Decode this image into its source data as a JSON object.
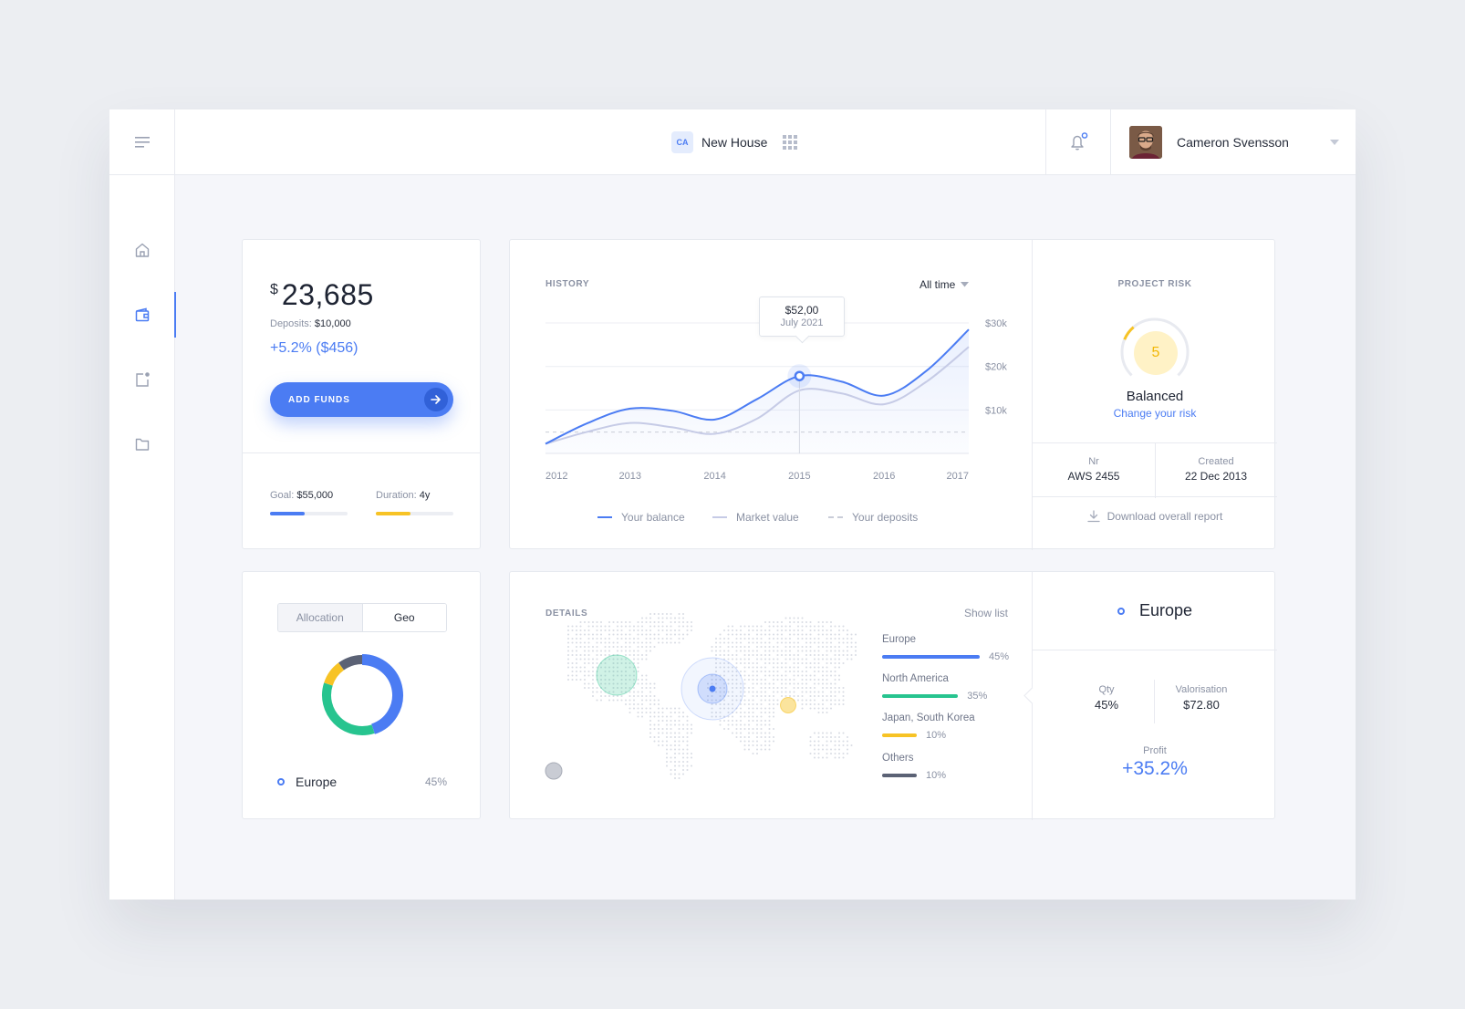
{
  "topbar": {
    "project_badge": "CA",
    "project_name": "New House",
    "user_name": "Cameron Svensson"
  },
  "sidebar": {
    "items": [
      {
        "name": "home",
        "icon": "home-icon",
        "active": false
      },
      {
        "name": "wallet",
        "icon": "wallet-icon",
        "active": true
      },
      {
        "name": "notifications",
        "icon": "notification-icon",
        "active": false
      },
      {
        "name": "files",
        "icon": "folder-icon",
        "active": false
      }
    ]
  },
  "balance": {
    "currency": "$",
    "amount": "23,685",
    "deposits_label": "Deposits:",
    "deposits_value": "$10,000",
    "change": "+5.2% ($456)",
    "add_funds_label": "ADD FUNDS",
    "goal_label": "Goal:",
    "goal_value": "$55,000",
    "goal_progress": 0.45,
    "duration_label": "Duration:",
    "duration_value": "4y",
    "duration_progress": 0.45
  },
  "history": {
    "title": "HISTORY",
    "period": "All time",
    "tooltip_value": "$52,00",
    "tooltip_date": "July 2021",
    "legend": [
      "Your balance",
      "Market value",
      "Your deposits"
    ]
  },
  "chart_data": {
    "type": "line",
    "title": "HISTORY",
    "x": [
      2012,
      2013,
      2014,
      2015,
      2016,
      2017
    ],
    "x_tick_labels": [
      "2012",
      "2013",
      "2014",
      "2015",
      "2016",
      "2017"
    ],
    "y_tick_labels": [
      "$30k",
      "$20k",
      "$10k"
    ],
    "ylim": [
      0,
      34
    ],
    "grid": true,
    "legend_position": "bottom",
    "series": [
      {
        "name": "Your balance",
        "color": "#4b7cf3",
        "style": "solid",
        "points": [
          [
            2012,
            2.2
          ],
          [
            2012.5,
            7.0
          ],
          [
            2013,
            10.3
          ],
          [
            2013.5,
            9.8
          ],
          [
            2014,
            7.8
          ],
          [
            2014.5,
            12.5
          ],
          [
            2015,
            17.8
          ],
          [
            2015.5,
            16.5
          ],
          [
            2016,
            13.3
          ],
          [
            2016.5,
            19.0
          ],
          [
            2017,
            28.5
          ]
        ]
      },
      {
        "name": "Market value",
        "color": "#c6cbe6",
        "style": "solid",
        "points": [
          [
            2012,
            2.2
          ],
          [
            2012.5,
            5.0
          ],
          [
            2013,
            7.0
          ],
          [
            2013.5,
            6.0
          ],
          [
            2014,
            4.5
          ],
          [
            2014.5,
            8.0
          ],
          [
            2015,
            14.5
          ],
          [
            2015.5,
            13.8
          ],
          [
            2016,
            11.3
          ],
          [
            2016.5,
            16.5
          ],
          [
            2017,
            24.5
          ]
        ]
      },
      {
        "name": "Your deposits",
        "color": "#c9cdd8",
        "style": "dashed",
        "points": [
          [
            2012,
            4.9
          ],
          [
            2017,
            4.9
          ]
        ]
      }
    ],
    "annotations": [
      {
        "x": 2015,
        "label": "$52,00",
        "sublabel": "July 2021"
      }
    ]
  },
  "risk": {
    "title": "PROJECT RISK",
    "score": "5",
    "score_fraction": 0.1,
    "label": "Balanced",
    "link": "Change your risk",
    "nr_label": "Nr",
    "nr_value": "AWS 2455",
    "created_label": "Created",
    "created_value": "22 Dec 2013",
    "download_label": "Download overall report"
  },
  "allocation": {
    "tabs": [
      "Allocation",
      "Geo"
    ],
    "active_tab": "Allocation",
    "donut": [
      {
        "name": "Europe",
        "value": 45,
        "color": "#4b7cf3"
      },
      {
        "name": "North America",
        "value": 35,
        "color": "#27c48f"
      },
      {
        "name": "Japan, South Korea",
        "value": 10,
        "color": "#f7c325"
      },
      {
        "name": "Others",
        "value": 10,
        "color": "#5b6275"
      }
    ],
    "legend_name": "Europe",
    "legend_pct": "45%"
  },
  "details": {
    "title": "DETAILS",
    "show_list": "Show list",
    "regions": [
      {
        "name": "Europe",
        "pct": "45%",
        "value": 45,
        "color": "#4b7cf3"
      },
      {
        "name": "North America",
        "pct": "35%",
        "value": 35,
        "color": "#27c48f"
      },
      {
        "name": "Japan, South Korea",
        "pct": "10%",
        "value": 10,
        "color": "#f7c325"
      },
      {
        "name": "Others",
        "pct": "10%",
        "value": 10,
        "color": "#5b6275"
      }
    ],
    "selected": {
      "name": "Europe",
      "qty_label": "Qty",
      "qty_value": "45%",
      "valorisation_label": "Valorisation",
      "valorisation_value": "$72.80",
      "profit_label": "Profit",
      "profit_value": "+35.2%"
    }
  }
}
